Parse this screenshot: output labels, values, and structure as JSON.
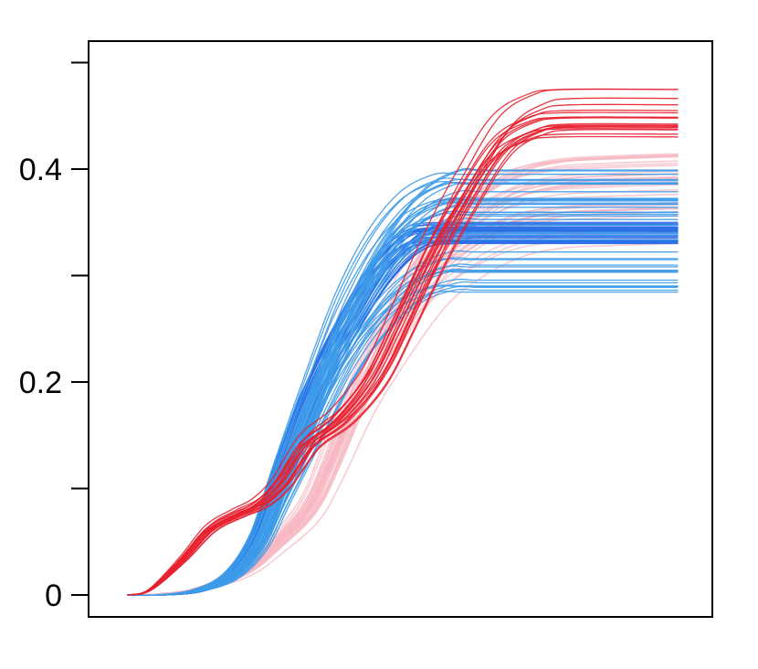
{
  "chart_data": {
    "type": "line",
    "title": "",
    "xlabel": "",
    "ylabel": "",
    "xlim": [
      0,
      1
    ],
    "ylim": [
      -0.001,
      0.5
    ],
    "y_ticks": [
      {
        "value": 0,
        "label": "0"
      },
      {
        "value": 0.1,
        "label": ""
      },
      {
        "value": 0.2,
        "label": "0.2"
      },
      {
        "value": 0.3,
        "label": ""
      },
      {
        "value": 0.4,
        "label": "0.4"
      },
      {
        "value": 0.5,
        "label": ""
      }
    ],
    "x_ticks_shown": false,
    "grid": false,
    "legend": "none",
    "colors": {
      "red_group": "#e8202f",
      "pink_group": "#f7b8c2",
      "light_blue_group": "#3d9be9",
      "blue_group": "#2a6fe6"
    },
    "series": [
      {
        "group": "pink_group",
        "count": 35,
        "x": [
          0.0,
          0.06,
          0.13,
          0.21,
          0.27,
          0.33,
          0.37,
          0.43,
          0.5,
          0.56,
          0.62,
          0.7,
          0.78,
          0.88,
          1.0
        ],
        "y": [
          0.0,
          0.001,
          0.006,
          0.022,
          0.05,
          0.085,
          0.13,
          0.21,
          0.28,
          0.33,
          0.36,
          0.385,
          0.395,
          0.398,
          0.4
        ],
        "y_final_range": [
          0.33,
          0.42
        ]
      },
      {
        "group": "blue_group",
        "count": 30,
        "x": [
          0.0,
          0.06,
          0.13,
          0.19,
          0.24,
          0.28,
          0.34,
          0.4,
          0.46,
          0.52,
          0.58,
          0.62,
          0.66,
          0.72,
          1.0
        ],
        "y": [
          0.0,
          0.0,
          0.004,
          0.02,
          0.06,
          0.12,
          0.2,
          0.26,
          0.31,
          0.34,
          0.345,
          0.345,
          0.345,
          0.345,
          0.345
        ],
        "y_final_range": [
          0.33,
          0.35
        ]
      },
      {
        "group": "light_blue_group",
        "count": 45,
        "x": [
          0.0,
          0.06,
          0.13,
          0.19,
          0.24,
          0.28,
          0.34,
          0.4,
          0.46,
          0.52,
          0.58,
          0.62,
          0.66,
          0.72,
          1.0
        ],
        "y": [
          0.0,
          0.0,
          0.005,
          0.02,
          0.055,
          0.11,
          0.19,
          0.265,
          0.32,
          0.355,
          0.37,
          0.37,
          0.37,
          0.37,
          0.37
        ],
        "y_final_range": [
          0.28,
          0.4
        ]
      },
      {
        "group": "red_group",
        "count": 18,
        "x": [
          0.0,
          0.04,
          0.1,
          0.15,
          0.2,
          0.24,
          0.28,
          0.33,
          0.39,
          0.45,
          0.5,
          0.56,
          0.62,
          0.68,
          0.74,
          0.8,
          1.0
        ],
        "y": [
          0.0,
          0.005,
          0.035,
          0.065,
          0.08,
          0.09,
          0.11,
          0.15,
          0.175,
          0.215,
          0.27,
          0.34,
          0.4,
          0.45,
          0.47,
          0.475,
          0.475
        ],
        "y_final_range": [
          0.43,
          0.475
        ]
      }
    ]
  }
}
